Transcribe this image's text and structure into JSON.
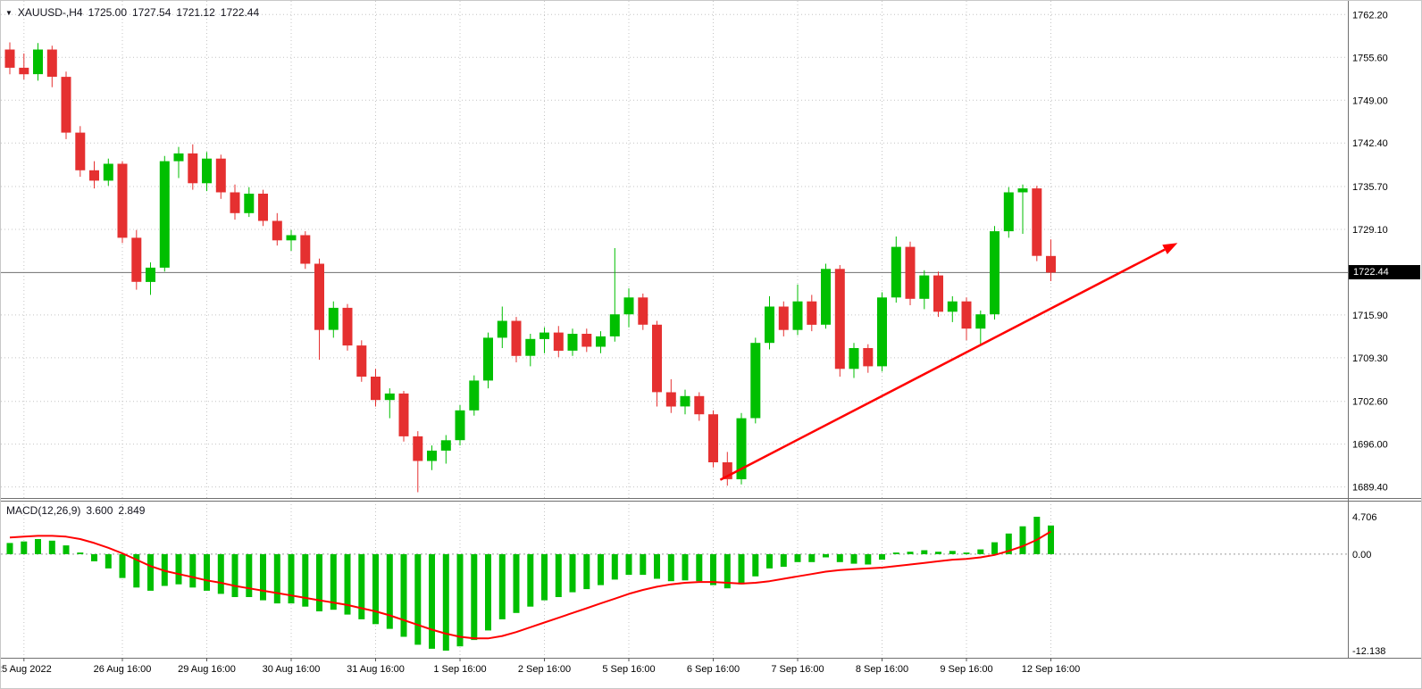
{
  "header": {
    "expand_icon": "▼",
    "symbol": "XAUUSD-,H4",
    "open": "1725.00",
    "high": "1727.54",
    "low": "1721.12",
    "close": "1722.44"
  },
  "indicator_header": {
    "name": "MACD(12,26,9)",
    "main_value": "3.600",
    "signal_value": "2.849"
  },
  "price_axis": {
    "labels": [
      "1762.20",
      "1755.60",
      "1749.00",
      "1742.40",
      "1735.70",
      "1729.10",
      "1715.90",
      "1709.30",
      "1702.60",
      "1696.00",
      "1689.40"
    ],
    "current_price_label": "1722.44"
  },
  "macd_axis": {
    "texts": [
      "4.706",
      "0.00",
      "-12.138"
    ],
    "values": [
      4.706,
      0,
      -12.138
    ]
  },
  "time_axis": {
    "labels": [
      "25 Aug 2022",
      "26 Aug 16:00",
      "29 Aug 16:00",
      "30 Aug 16:00",
      "31 Aug 16:00",
      "1 Sep 16:00",
      "2 Sep 16:00",
      "5 Sep 16:00",
      "6 Sep 16:00",
      "7 Sep 16:00",
      "8 Sep 16:00",
      "9 Sep 16:00",
      "12 Sep 16:00"
    ],
    "tick_indices": [
      1,
      8,
      14,
      20,
      26,
      32,
      38,
      44,
      50,
      56,
      62,
      68,
      74
    ]
  },
  "colors": {
    "bull": "#00bf00",
    "bear": "#e53030",
    "macd_histogram": "#00bf00",
    "macd_signal": "#ff0000",
    "trend_arrow": "#ff0000",
    "grid": "#c4c4c4",
    "zero_line": "#9a9a9a",
    "axis_text": "#000000",
    "price_line": "#6e6e6e",
    "badge_bg": "#000000",
    "badge_text": "#ffffff",
    "pane_border": "#707070",
    "header_text": "#14141e"
  },
  "chart_data": {
    "type": "candlestick",
    "symbol": "XAUUSD-",
    "timeframe": "H4",
    "title": "XAUUSD-,H4 1725.00 1727.54 1721.12 1722.44",
    "ylim": [
      1687.7,
      1764.3
    ],
    "grid_prices": [
      1762.2,
      1755.6,
      1749.0,
      1742.4,
      1735.7,
      1729.1,
      1715.9,
      1709.3,
      1702.6,
      1696.0,
      1689.4
    ],
    "current_price": 1722.44,
    "ohlc": [
      [
        1756.8,
        1757.9,
        1753.0,
        1754.0
      ],
      [
        1754.0,
        1756.2,
        1752.2,
        1753.0
      ],
      [
        1753.0,
        1757.8,
        1752.0,
        1756.8
      ],
      [
        1756.8,
        1757.4,
        1751.0,
        1752.6
      ],
      [
        1752.6,
        1753.4,
        1743.0,
        1744.0
      ],
      [
        1744.0,
        1745.0,
        1737.2,
        1738.2
      ],
      [
        1738.2,
        1739.6,
        1735.4,
        1736.6
      ],
      [
        1736.6,
        1740.0,
        1735.8,
        1739.2
      ],
      [
        1739.2,
        1739.6,
        1727.0,
        1727.8
      ],
      [
        1727.8,
        1729.0,
        1719.8,
        1721.0
      ],
      [
        1721.0,
        1724.0,
        1719.0,
        1723.2
      ],
      [
        1723.2,
        1740.4,
        1722.6,
        1739.6
      ],
      [
        1739.6,
        1741.8,
        1737.0,
        1740.8
      ],
      [
        1740.8,
        1742.2,
        1735.2,
        1736.2
      ],
      [
        1736.2,
        1741.0,
        1735.0,
        1740.0
      ],
      [
        1740.0,
        1740.6,
        1733.8,
        1734.8
      ],
      [
        1734.8,
        1736.0,
        1730.6,
        1731.6
      ],
      [
        1731.6,
        1735.6,
        1731.0,
        1734.6
      ],
      [
        1734.6,
        1735.2,
        1729.6,
        1730.4
      ],
      [
        1730.4,
        1731.6,
        1726.6,
        1727.4
      ],
      [
        1727.4,
        1729.0,
        1725.8,
        1728.2
      ],
      [
        1728.2,
        1728.8,
        1723.0,
        1723.8
      ],
      [
        1723.8,
        1724.6,
        1709.0,
        1713.6
      ],
      [
        1713.6,
        1718.0,
        1712.4,
        1717.0
      ],
      [
        1717.0,
        1717.6,
        1710.4,
        1711.2
      ],
      [
        1711.2,
        1712.0,
        1705.6,
        1706.4
      ],
      [
        1706.4,
        1707.6,
        1701.8,
        1702.8
      ],
      [
        1702.8,
        1704.6,
        1700.0,
        1703.8
      ],
      [
        1703.8,
        1704.2,
        1696.4,
        1697.2
      ],
      [
        1697.2,
        1698.0,
        1688.6,
        1693.4
      ],
      [
        1693.4,
        1695.8,
        1692.0,
        1695.0
      ],
      [
        1695.0,
        1697.4,
        1693.0,
        1696.6
      ],
      [
        1696.6,
        1702.0,
        1695.8,
        1701.2
      ],
      [
        1701.2,
        1706.6,
        1700.4,
        1705.8
      ],
      [
        1705.8,
        1713.2,
        1704.6,
        1712.4
      ],
      [
        1712.4,
        1717.2,
        1710.8,
        1715.0
      ],
      [
        1715.0,
        1715.6,
        1708.6,
        1709.6
      ],
      [
        1709.6,
        1713.0,
        1708.0,
        1712.2
      ],
      [
        1712.2,
        1714.0,
        1710.0,
        1713.2
      ],
      [
        1713.2,
        1714.2,
        1709.4,
        1710.4
      ],
      [
        1710.4,
        1713.8,
        1709.6,
        1713.0
      ],
      [
        1713.0,
        1713.8,
        1710.2,
        1711.0
      ],
      [
        1711.0,
        1713.4,
        1710.0,
        1712.6
      ],
      [
        1712.6,
        1726.2,
        1711.8,
        1716.0
      ],
      [
        1716.0,
        1720.0,
        1714.0,
        1718.6
      ],
      [
        1718.6,
        1719.2,
        1713.6,
        1714.4
      ],
      [
        1714.4,
        1715.0,
        1701.8,
        1704.0
      ],
      [
        1704.0,
        1706.0,
        1700.8,
        1701.8
      ],
      [
        1701.8,
        1704.4,
        1700.6,
        1703.4
      ],
      [
        1703.4,
        1704.0,
        1699.6,
        1700.6
      ],
      [
        1700.6,
        1701.2,
        1692.4,
        1693.2
      ],
      [
        1693.2,
        1694.8,
        1689.6,
        1690.6
      ],
      [
        1690.6,
        1700.8,
        1689.8,
        1700.0
      ],
      [
        1700.0,
        1712.4,
        1699.2,
        1711.6
      ],
      [
        1711.6,
        1718.8,
        1710.6,
        1717.2
      ],
      [
        1717.2,
        1718.0,
        1712.6,
        1713.6
      ],
      [
        1713.6,
        1720.6,
        1712.8,
        1718.0
      ],
      [
        1718.0,
        1719.0,
        1713.4,
        1714.4
      ],
      [
        1714.4,
        1723.8,
        1713.8,
        1723.0
      ],
      [
        1723.0,
        1723.6,
        1706.4,
        1707.6
      ],
      [
        1707.6,
        1711.6,
        1706.2,
        1710.8
      ],
      [
        1710.8,
        1711.4,
        1707.0,
        1708.0
      ],
      [
        1708.0,
        1719.4,
        1707.2,
        1718.6
      ],
      [
        1718.6,
        1728.0,
        1717.8,
        1726.4
      ],
      [
        1726.4,
        1727.2,
        1717.4,
        1718.4
      ],
      [
        1718.4,
        1722.8,
        1716.8,
        1722.0
      ],
      [
        1722.0,
        1722.6,
        1715.6,
        1716.4
      ],
      [
        1716.4,
        1718.8,
        1714.8,
        1718.0
      ],
      [
        1718.0,
        1718.6,
        1712.0,
        1713.8
      ],
      [
        1713.8,
        1716.6,
        1711.4,
        1716.0
      ],
      [
        1716.0,
        1729.6,
        1715.2,
        1728.8
      ],
      [
        1728.8,
        1735.6,
        1727.8,
        1734.8
      ],
      [
        1734.8,
        1736.0,
        1728.4,
        1735.4
      ],
      [
        1735.4,
        1735.8,
        1724.2,
        1725.0
      ],
      [
        1725.0,
        1727.54,
        1721.12,
        1722.44
      ]
    ],
    "macd": {
      "ylim": [
        -12.138,
        4.706
      ],
      "histogram": [
        1.4,
        1.6,
        1.9,
        1.7,
        1.1,
        0.2,
        -0.9,
        -1.8,
        -3.0,
        -4.2,
        -4.6,
        -4.0,
        -3.8,
        -4.2,
        -4.6,
        -5.0,
        -5.4,
        -5.4,
        -5.8,
        -6.2,
        -6.2,
        -6.6,
        -7.2,
        -7.0,
        -7.6,
        -8.2,
        -8.8,
        -9.4,
        -10.4,
        -11.4,
        -11.9,
        -12.138,
        -11.6,
        -10.8,
        -9.6,
        -8.2,
        -7.4,
        -6.6,
        -5.8,
        -5.4,
        -4.8,
        -4.4,
        -3.9,
        -3.2,
        -2.6,
        -2.6,
        -3.1,
        -3.4,
        -3.3,
        -3.4,
        -3.9,
        -4.3,
        -3.8,
        -2.8,
        -1.8,
        -1.6,
        -1.0,
        -1.0,
        -0.4,
        -1.0,
        -1.2,
        -1.3,
        -0.7,
        0.2,
        0.3,
        0.5,
        0.3,
        0.4,
        0.2,
        0.6,
        1.5,
        2.6,
        3.5,
        4.706,
        3.6
      ],
      "signal": [
        2.1,
        2.2,
        2.3,
        2.3,
        2.2,
        1.9,
        1.4,
        0.8,
        0.1,
        -0.7,
        -1.5,
        -2.1,
        -2.5,
        -2.9,
        -3.3,
        -3.6,
        -4.0,
        -4.3,
        -4.6,
        -4.9,
        -5.2,
        -5.5,
        -5.8,
        -6.1,
        -6.4,
        -6.8,
        -7.2,
        -7.7,
        -8.3,
        -8.9,
        -9.5,
        -10.0,
        -10.4,
        -10.6,
        -10.6,
        -10.3,
        -9.8,
        -9.2,
        -8.6,
        -8.0,
        -7.4,
        -6.8,
        -6.2,
        -5.6,
        -5.0,
        -4.5,
        -4.1,
        -3.8,
        -3.6,
        -3.5,
        -3.5,
        -3.6,
        -3.7,
        -3.6,
        -3.4,
        -3.1,
        -2.8,
        -2.5,
        -2.2,
        -2.0,
        -1.9,
        -1.8,
        -1.7,
        -1.5,
        -1.3,
        -1.1,
        -0.9,
        -0.7,
        -0.6,
        -0.4,
        -0.1,
        0.4,
        1.0,
        1.8,
        2.849
      ]
    },
    "trend_arrow": {
      "from_index": 50.5,
      "from_price": 1690.5,
      "to_index": 83,
      "to_price": 1727.0
    }
  }
}
